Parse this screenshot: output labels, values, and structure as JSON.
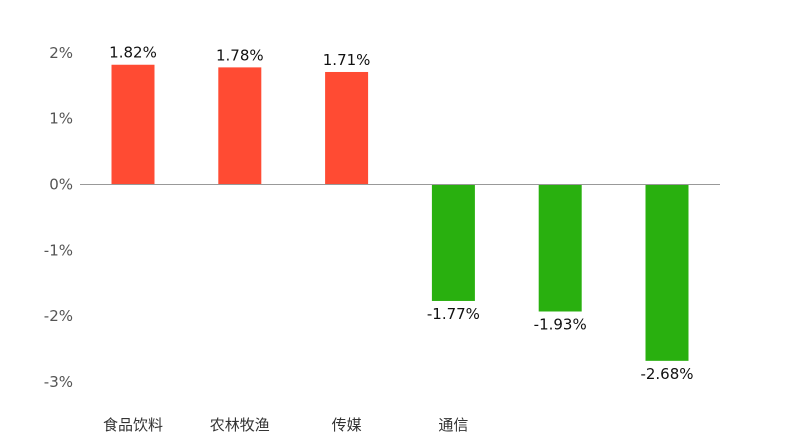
{
  "chart_data": {
    "type": "bar",
    "categories": [
      "食品饮料",
      "农林牧渔",
      "传媒",
      "通信",
      "",
      ""
    ],
    "values": [
      1.82,
      1.78,
      1.71,
      -1.77,
      -1.93,
      -2.68
    ],
    "value_labels": [
      "1.82%",
      "1.78%",
      "1.71%",
      "-1.77%",
      "-1.93%",
      "-2.68%"
    ],
    "y_ticks": [
      2,
      1,
      0,
      -1,
      -2,
      -3
    ],
    "y_tick_labels": [
      "2%",
      "1%",
      "0%",
      "-1%",
      "-2%",
      "-3%"
    ],
    "ylim": [
      -3,
      2
    ],
    "grid": false,
    "colors": {
      "positive": "#ff4b33",
      "negative": "#29b00f",
      "baseline": "#999999"
    }
  }
}
